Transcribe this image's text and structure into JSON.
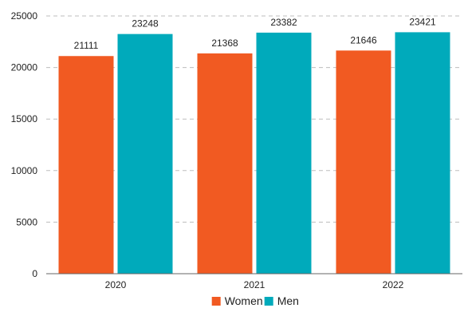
{
  "chart_data": {
    "type": "bar",
    "categories": [
      "2020",
      "2021",
      "2022"
    ],
    "series": [
      {
        "name": "Women",
        "color": "#f15a22",
        "values": [
          21111,
          21368,
          21646
        ]
      },
      {
        "name": "Men",
        "color": "#00aabb",
        "values": [
          23248,
          23382,
          23421
        ]
      }
    ],
    "ylim": [
      0,
      25000
    ],
    "yticks": [
      0,
      5000,
      10000,
      15000,
      20000,
      25000
    ],
    "grid": true,
    "legend_position": "bottom-center",
    "data_labels": true
  }
}
